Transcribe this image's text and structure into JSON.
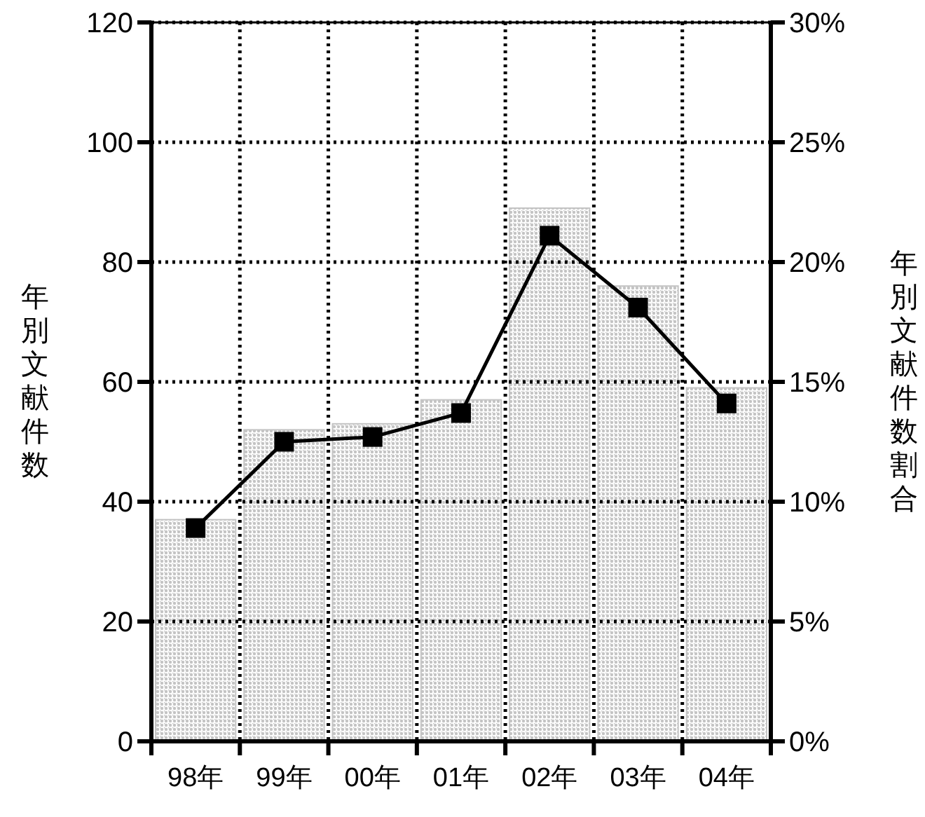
{
  "chart_data": {
    "type": "bar",
    "ylabel": "年別文献件数",
    "y2label": "年別文献件数割合",
    "categories": [
      "98年",
      "99年",
      "00年",
      "01年",
      "02年",
      "03年",
      "04年"
    ],
    "series": [
      {
        "color": "#c4c4c4",
        "values": [
          37,
          52,
          53,
          57,
          89,
          76,
          59
        ]
      },
      {
        "type": "line",
        "axis": "y2",
        "color": "#000000",
        "marker": "square",
        "values": [
          8.9,
          12.5,
          12.7,
          13.7,
          21.1,
          18.1,
          14.1
        ]
      }
    ],
    "ylim": [
      0,
      120
    ],
    "yticks": [
      0,
      20,
      40,
      60,
      80,
      100,
      120
    ],
    "y2lim": [
      0,
      30
    ],
    "y2ticks": [
      {
        "value": 0,
        "label": "0%"
      },
      {
        "value": 5,
        "label": "5%"
      },
      {
        "value": 10,
        "label": "10%"
      },
      {
        "value": 15,
        "label": "15%"
      },
      {
        "value": 20,
        "label": "20%"
      },
      {
        "value": 25,
        "label": "25%"
      },
      {
        "value": 30,
        "label": "30%"
      }
    ],
    "grid": true
  }
}
